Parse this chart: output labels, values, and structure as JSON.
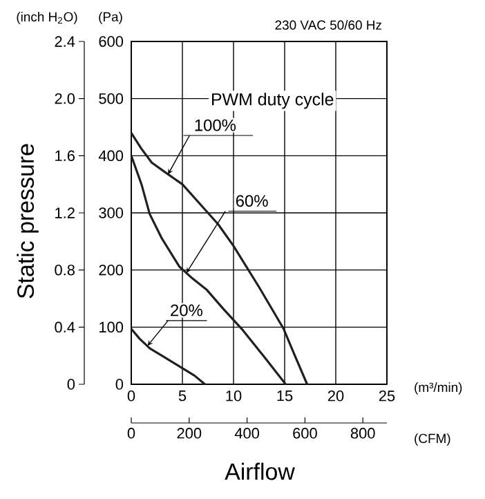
{
  "chart_data": {
    "type": "line",
    "ylabel": "Static pressure",
    "xlabel": "Airflow",
    "y2label": "(Pa)",
    "x2label": "(CFM)",
    "legend_title": "PWM duty cycle",
    "annotations": [
      {
        "text": "100%",
        "x": 3.6,
        "y": 1.47
      },
      {
        "text": "60%",
        "x": 5.4,
        "y": 0.78
      },
      {
        "text": "20%",
        "x": 1.6,
        "y": 0.27
      },
      "(inch H$_{2}$O)",
      "(m³/min)",
      "230 VAC  50/60 Hz"
    ],
    "xlim": [
      0,
      25
    ],
    "ylim": [
      0,
      2.4
    ],
    "xticks": [
      0,
      5,
      10,
      15,
      20,
      25
    ],
    "yticks": [
      0,
      0.4,
      0.8,
      1.2,
      1.6,
      {
        "value": 2,
        "label": "2.0"
      },
      2.4
    ],
    "y2lim": [
      0,
      600
    ],
    "y2ticks": [
      0,
      100,
      200,
      300,
      400,
      500,
      600
    ],
    "x2lim": [
      0,
      883
    ],
    "x2ticks": [
      0,
      200,
      400,
      600,
      800
    ],
    "grid": true,
    "marker": "none",
    "line_style": "solid",
    "series": [
      {
        "color": "#231f20",
        "axis": "y2",
        "x": [
          0,
          1,
          2,
          3.4,
          5,
          7,
          8.5,
          10,
          12.5,
          14.9,
          16,
          17.2
        ],
        "values": [
          440,
          412,
          388,
          370,
          350,
          310,
          280,
          242,
          170,
          97,
          50,
          0
        ]
      },
      {
        "color": "#231f20",
        "axis": "y2",
        "x": [
          0,
          1,
          1.8,
          3,
          4.7,
          6,
          7.4,
          9,
          10.8,
          13,
          15.1
        ],
        "values": [
          400,
          350,
          298,
          255,
          206,
          185,
          165,
          132,
          97,
          48,
          0
        ]
      },
      {
        "color": "#231f20",
        "axis": "y2",
        "x": [
          0,
          0.8,
          1.8,
          3,
          5.1,
          6.2,
          7.2
        ],
        "values": [
          97,
          80,
          63,
          50,
          27,
          15,
          0
        ]
      }
    ]
  }
}
